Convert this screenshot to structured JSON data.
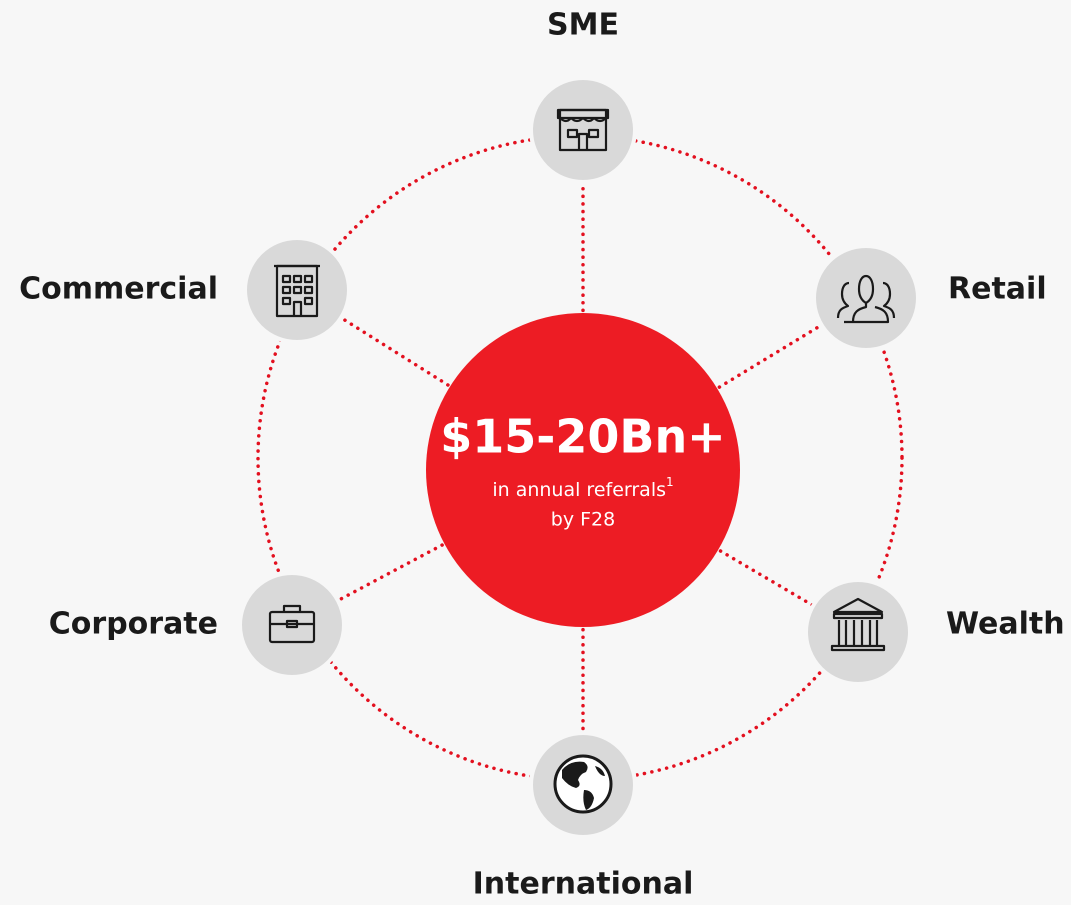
{
  "center": {
    "value": "$15-20Bn+",
    "line1": "in annual referrals",
    "footnote": "1",
    "line2": "by F28"
  },
  "nodes": [
    {
      "label": "SME"
    },
    {
      "label": "Retail"
    },
    {
      "label": "Wealth"
    },
    {
      "label": "International"
    },
    {
      "label": "Corporate"
    },
    {
      "label": "Commercial"
    }
  ]
}
